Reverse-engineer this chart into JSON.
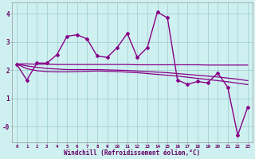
{
  "xlabel": "Windchill (Refroidissement éolien,°C)",
  "background_color": "#cff0f0",
  "line_color": "#880088",
  "xlim": [
    -0.5,
    23.5
  ],
  "ylim": [
    -0.55,
    4.4
  ],
  "x": [
    0,
    1,
    2,
    3,
    4,
    5,
    6,
    7,
    8,
    9,
    10,
    11,
    12,
    13,
    14,
    15,
    16,
    17,
    18,
    19,
    20,
    21,
    22,
    23
  ],
  "y_main": [
    2.2,
    1.65,
    2.25,
    2.25,
    2.55,
    3.2,
    3.25,
    3.1,
    2.5,
    2.45,
    2.8,
    3.3,
    2.45,
    2.8,
    4.05,
    3.85,
    1.65,
    1.5,
    1.6,
    1.55,
    1.9,
    1.4,
    -0.3,
    0.7
  ],
  "y_line1": [
    2.22,
    2.22,
    2.21,
    2.21,
    2.2,
    2.2,
    2.2,
    2.2,
    2.2,
    2.2,
    2.2,
    2.2,
    2.19,
    2.19,
    2.19,
    2.19,
    2.19,
    2.19,
    2.19,
    2.18,
    2.18,
    2.18,
    2.18,
    2.18
  ],
  "y_line2": [
    2.22,
    2.15,
    2.1,
    2.06,
    2.04,
    2.02,
    2.02,
    2.02,
    2.02,
    2.01,
    2.0,
    1.99,
    1.97,
    1.95,
    1.93,
    1.91,
    1.88,
    1.85,
    1.82,
    1.79,
    1.76,
    1.72,
    1.68,
    1.63
  ],
  "y_line3": [
    2.22,
    2.05,
    1.98,
    1.95,
    1.94,
    1.94,
    1.95,
    1.96,
    1.97,
    1.96,
    1.95,
    1.93,
    1.91,
    1.88,
    1.85,
    1.82,
    1.79,
    1.75,
    1.71,
    1.67,
    1.63,
    1.59,
    1.54,
    1.49
  ],
  "xtick_labels": [
    "0",
    "1",
    "2",
    "3",
    "4",
    "5",
    "6",
    "7",
    "8",
    "9",
    "10",
    "11",
    "12",
    "13",
    "14",
    "15",
    "16",
    "17",
    "18",
    "19",
    "20",
    "21",
    "22",
    "23"
  ]
}
